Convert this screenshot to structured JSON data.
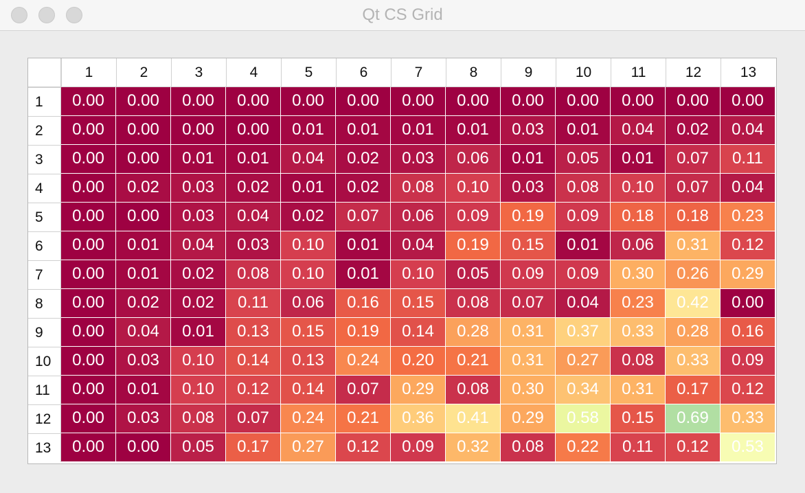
{
  "window": {
    "title": "Qt CS Grid"
  },
  "grid": {
    "col_headers": [
      "1",
      "2",
      "3",
      "4",
      "5",
      "6",
      "7",
      "8",
      "9",
      "10",
      "11",
      "12",
      "13"
    ],
    "row_headers": [
      "1",
      "2",
      "3",
      "4",
      "5",
      "6",
      "7",
      "8",
      "9",
      "10",
      "11",
      "12",
      "13"
    ],
    "values": [
      [
        "0.00",
        "0.00",
        "0.00",
        "0.00",
        "0.00",
        "0.00",
        "0.00",
        "0.00",
        "0.00",
        "0.00",
        "0.00",
        "0.00",
        "0.00"
      ],
      [
        "0.00",
        "0.00",
        "0.00",
        "0.00",
        "0.01",
        "0.01",
        "0.01",
        "0.01",
        "0.03",
        "0.01",
        "0.04",
        "0.02",
        "0.04"
      ],
      [
        "0.00",
        "0.00",
        "0.01",
        "0.01",
        "0.04",
        "0.02",
        "0.03",
        "0.06",
        "0.01",
        "0.05",
        "0.01",
        "0.07",
        "0.11"
      ],
      [
        "0.00",
        "0.02",
        "0.03",
        "0.02",
        "0.01",
        "0.02",
        "0.08",
        "0.10",
        "0.03",
        "0.08",
        "0.10",
        "0.07",
        "0.04"
      ],
      [
        "0.00",
        "0.00",
        "0.03",
        "0.04",
        "0.02",
        "0.07",
        "0.06",
        "0.09",
        "0.19",
        "0.09",
        "0.18",
        "0.18",
        "0.23"
      ],
      [
        "0.00",
        "0.01",
        "0.04",
        "0.03",
        "0.10",
        "0.01",
        "0.04",
        "0.19",
        "0.15",
        "0.01",
        "0.06",
        "0.31",
        "0.12"
      ],
      [
        "0.00",
        "0.01",
        "0.02",
        "0.08",
        "0.10",
        "0.01",
        "0.10",
        "0.05",
        "0.09",
        "0.09",
        "0.30",
        "0.26",
        "0.29"
      ],
      [
        "0.00",
        "0.02",
        "0.02",
        "0.11",
        "0.06",
        "0.16",
        "0.15",
        "0.08",
        "0.07",
        "0.04",
        "0.23",
        "0.42",
        "0.00"
      ],
      [
        "0.00",
        "0.04",
        "0.01",
        "0.13",
        "0.15",
        "0.19",
        "0.14",
        "0.28",
        "0.31",
        "0.37",
        "0.33",
        "0.28",
        "0.16"
      ],
      [
        "0.00",
        "0.03",
        "0.10",
        "0.14",
        "0.13",
        "0.24",
        "0.20",
        "0.21",
        "0.31",
        "0.27",
        "0.08",
        "0.33",
        "0.09"
      ],
      [
        "0.00",
        "0.01",
        "0.10",
        "0.12",
        "0.14",
        "0.07",
        "0.29",
        "0.08",
        "0.30",
        "0.34",
        "0.31",
        "0.17",
        "0.12"
      ],
      [
        "0.00",
        "0.03",
        "0.08",
        "0.07",
        "0.24",
        "0.21",
        "0.36",
        "0.41",
        "0.29",
        "0.58",
        "0.15",
        "0.69",
        "0.33"
      ],
      [
        "0.00",
        "0.00",
        "0.05",
        "0.17",
        "0.27",
        "0.12",
        "0.09",
        "0.32",
        "0.08",
        "0.22",
        "0.11",
        "0.12",
        "0.53"
      ]
    ],
    "colormap": {
      "name": "Spectral",
      "stops": [
        "#9e0142",
        "#d53e4f",
        "#f46d43",
        "#fdae61",
        "#fee08b",
        "#ffffbf",
        "#e6f598",
        "#abdda4",
        "#66c2a5",
        "#3288bd",
        "#5e4fa2"
      ],
      "vmin": 0.0,
      "vmax": 1.0
    }
  }
}
